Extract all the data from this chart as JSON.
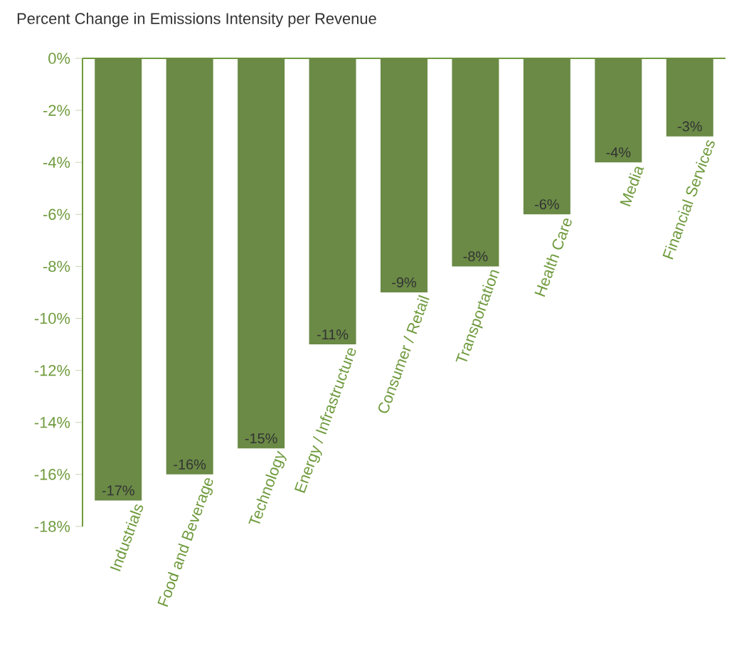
{
  "chart_data": {
    "type": "bar",
    "title": "Percent Change in Emissions  Intensity per Revenue",
    "categories": [
      "Industrials",
      "Food and Beverage",
      "Technology",
      "Energy / Infrastructure",
      "Consumer / Retail",
      "Transportation",
      "Health Care",
      "Media",
      "Financial Services"
    ],
    "values": [
      -17,
      -16,
      -15,
      -11,
      -9,
      -8,
      -6,
      -4,
      -3
    ],
    "value_labels": [
      "-17%",
      "-16%",
      "-15%",
      "-11%",
      "-9%",
      "-8%",
      "-6%",
      "-4%",
      "-3%"
    ],
    "color": "#6a8a46",
    "ylim": [
      -18,
      0
    ],
    "yticks": [
      {
        "value": 0,
        "label": "0%"
      },
      {
        "value": -2,
        "label": "-2%"
      },
      {
        "value": -4,
        "label": "-4%"
      },
      {
        "value": -6,
        "label": "-6%"
      },
      {
        "value": -8,
        "label": "-8%"
      },
      {
        "value": -10,
        "label": "-10%"
      },
      {
        "value": -12,
        "label": "-12%"
      },
      {
        "value": -14,
        "label": "-14%"
      },
      {
        "value": -16,
        "label": "-16%"
      },
      {
        "value": -18,
        "label": "-18%"
      }
    ]
  }
}
